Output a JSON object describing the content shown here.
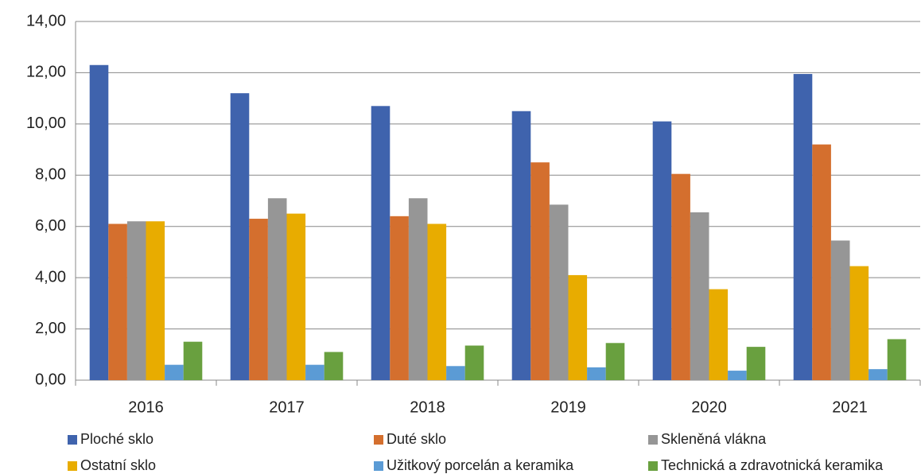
{
  "chart_data": {
    "type": "bar",
    "categories": [
      "2016",
      "2017",
      "2018",
      "2019",
      "2020",
      "2021"
    ],
    "series": [
      {
        "name": "Ploché sklo",
        "color": "#3f63ad",
        "values": [
          12.3,
          11.2,
          10.7,
          10.5,
          10.1,
          11.95
        ]
      },
      {
        "name": "Duté sklo",
        "color": "#d46f2e",
        "values": [
          6.1,
          6.3,
          6.4,
          8.5,
          8.05,
          9.2
        ]
      },
      {
        "name": "Skleněná vlákna",
        "color": "#969696",
        "values": [
          6.2,
          7.1,
          7.1,
          6.85,
          6.55,
          5.45
        ]
      },
      {
        "name": "Ostatní sklo",
        "color": "#e8ac00",
        "values": [
          6.2,
          6.5,
          6.1,
          4.1,
          3.55,
          4.45
        ]
      },
      {
        "name": "Užitkový porcelán a keramika",
        "color": "#5b9bd5",
        "values": [
          0.6,
          0.6,
          0.55,
          0.5,
          0.37,
          0.43
        ]
      },
      {
        "name": "Technická a zdravotnická keramika",
        "color": "#69a03f",
        "values": [
          1.5,
          1.1,
          1.35,
          1.45,
          1.3,
          1.6
        ]
      }
    ],
    "ylim": [
      0,
      14
    ],
    "yticks": [
      {
        "value": 0,
        "label": "0,00"
      },
      {
        "value": 2,
        "label": "2,00"
      },
      {
        "value": 4,
        "label": "4,00"
      },
      {
        "value": 6,
        "label": "6,00"
      },
      {
        "value": 8,
        "label": "8,00"
      },
      {
        "value": 10,
        "label": "10,00"
      },
      {
        "value": 12,
        "label": "12,00"
      },
      {
        "value": 14,
        "label": "14,00"
      }
    ],
    "grid": true,
    "legend": "bottom"
  }
}
